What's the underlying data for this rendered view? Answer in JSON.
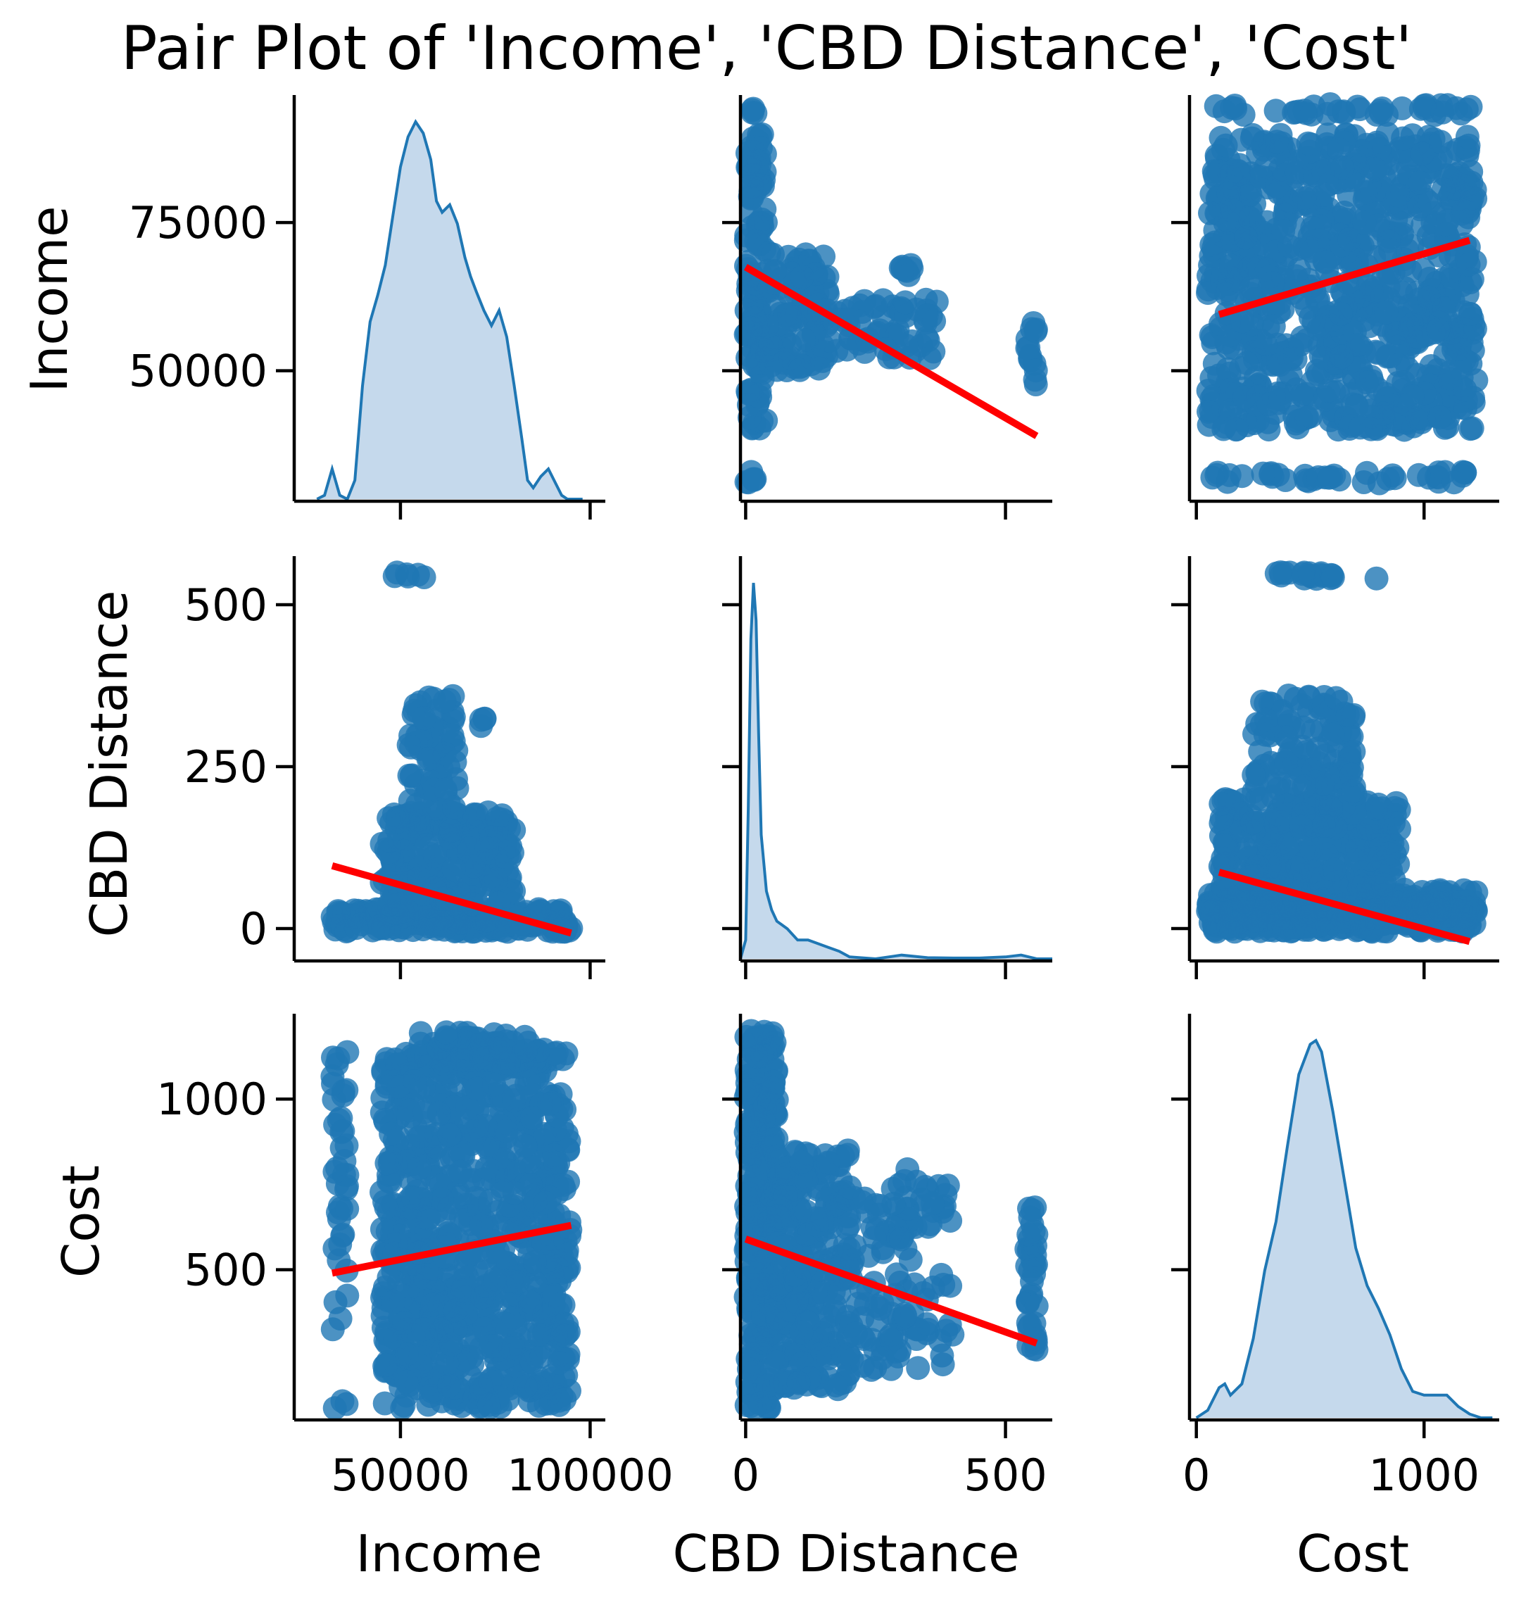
{
  "chart_data": {
    "type": "pairplot",
    "title": "Pair Plot of 'Income', 'CBD Distance', 'Cost'",
    "variables": [
      "Income",
      "CBD Distance",
      "Cost"
    ],
    "colors": {
      "points": "#1f77b4",
      "kde_line": "#1f77b4",
      "kde_fill": "#c5d9ec",
      "regression": "#ff0000",
      "axes": "#000000"
    },
    "axes": {
      "Income": {
        "range": [
          22000,
          104000
        ],
        "ticks": [
          50000,
          100000
        ],
        "tick_labels": [
          "50000",
          "100000"
        ],
        "row_ticks": [
          50000,
          75000
        ],
        "row_tick_labels": [
          "50000",
          "75000"
        ],
        "row_range": [
          28000,
          96500
        ]
      },
      "CBD Distance": {
        "range": [
          -10,
          590
        ],
        "ticks": [
          0,
          500
        ],
        "tick_labels": [
          "0",
          "500"
        ],
        "row_ticks": [
          0,
          250,
          500
        ],
        "row_tick_labels": [
          "0",
          "250",
          "500"
        ],
        "row_range": [
          -50,
          575
        ]
      },
      "Cost": {
        "range": [
          -30,
          1330
        ],
        "ticks": [
          0,
          1000
        ],
        "tick_labels": [
          "0",
          "1000"
        ],
        "row_ticks": [
          500,
          1000
        ],
        "row_tick_labels": [
          "500",
          "1000"
        ],
        "row_range": [
          60,
          1250
        ]
      }
    },
    "diagonal_kde": {
      "Income": {
        "x": [
          28000,
          30000,
          32000,
          34000,
          36000,
          38000,
          40000,
          42000,
          44000,
          46000,
          48000,
          50000,
          52000,
          54000,
          56000,
          58000,
          59500,
          61000,
          63000,
          65000,
          67000,
          68500,
          70000,
          72000,
          74000,
          76000,
          78000,
          80000,
          82000,
          83500,
          85000,
          87000,
          89000,
          91000,
          92500,
          94000,
          96000,
          98000
        ],
        "density": [
          0.0,
          0.01,
          0.08,
          0.01,
          0.0,
          0.05,
          0.3,
          0.47,
          0.54,
          0.62,
          0.75,
          0.88,
          0.96,
          1.0,
          0.97,
          0.9,
          0.79,
          0.76,
          0.78,
          0.73,
          0.64,
          0.59,
          0.55,
          0.5,
          0.46,
          0.5,
          0.43,
          0.3,
          0.16,
          0.05,
          0.03,
          0.06,
          0.08,
          0.04,
          0.01,
          0.0,
          0.0,
          0.0
        ]
      },
      "CBD Distance": {
        "x": [
          -10,
          0,
          5,
          10,
          15,
          20,
          25,
          30,
          40,
          50,
          60,
          70,
          80,
          100,
          120,
          140,
          160,
          180,
          200,
          250,
          300,
          350,
          400,
          450,
          500,
          530,
          545,
          560,
          590
        ],
        "density": [
          0.0,
          0.05,
          0.4,
          0.85,
          1.0,
          0.9,
          0.6,
          0.33,
          0.18,
          0.13,
          0.1,
          0.09,
          0.08,
          0.05,
          0.05,
          0.04,
          0.03,
          0.02,
          0.005,
          0.0,
          0.01,
          0.003,
          0.002,
          0.002,
          0.005,
          0.01,
          0.005,
          0.0,
          0.0
        ]
      },
      "Cost": {
        "x": [
          0,
          50,
          100,
          125,
          150,
          200,
          250,
          300,
          350,
          400,
          450,
          500,
          525,
          550,
          600,
          650,
          700,
          750,
          800,
          850,
          900,
          950,
          1000,
          1050,
          1100,
          1150,
          1200,
          1250,
          1300
        ],
        "density": [
          0.0,
          0.02,
          0.08,
          0.09,
          0.06,
          0.09,
          0.21,
          0.39,
          0.52,
          0.72,
          0.91,
          0.99,
          1.0,
          0.97,
          0.81,
          0.63,
          0.45,
          0.35,
          0.29,
          0.22,
          0.13,
          0.07,
          0.06,
          0.06,
          0.06,
          0.03,
          0.01,
          0.0,
          0.0
        ]
      }
    },
    "regression_lines": [
      {
        "x": "CBD Distance",
        "y": "Income",
        "x_range": [
          0,
          560
        ],
        "y_values": [
          67500,
          39000
        ]
      },
      {
        "x": "Cost",
        "y": "Income",
        "x_range": [
          100,
          1200
        ],
        "y_values": [
          59500,
          72000
        ]
      },
      {
        "x": "Income",
        "y": "CBD Distance",
        "x_range": [
          32000,
          95000
        ],
        "y_values": [
          97,
          -7
        ]
      },
      {
        "x": "Cost",
        "y": "CBD Distance",
        "x_range": [
          100,
          1200
        ],
        "y_values": [
          87,
          -20
        ]
      },
      {
        "x": "Income",
        "y": "Cost",
        "x_range": [
          32000,
          95000
        ],
        "y_values": [
          490,
          630
        ]
      },
      {
        "x": "CBD Distance",
        "y": "Cost",
        "x_range": [
          0,
          560
        ],
        "y_values": [
          590,
          285
        ]
      }
    ],
    "scatter_panels": [
      {
        "x": "CBD Distance",
        "y": "Income",
        "clusters": [
          {
            "cx": [
              0,
              40
            ],
            "cy": [
              40000,
              90000
            ],
            "n": 140
          },
          {
            "cx": [
              40,
              160
            ],
            "cy": [
              50000,
              70000
            ],
            "n": 110
          },
          {
            "cx": [
              160,
              370
            ],
            "cy": [
              52000,
              62000
            ],
            "n": 60
          },
          {
            "cx": [
              295,
              320
            ],
            "cy": [
              66000,
              68000
            ],
            "n": 8
          },
          {
            "cx": [
              540,
              560
            ],
            "cy": [
              47000,
              60000
            ],
            "n": 14
          },
          {
            "cx": [
              0,
              20
            ],
            "cy": [
              31000,
              33000
            ],
            "n": 6
          },
          {
            "cx": [
              0,
              20
            ],
            "cy": [
              93000,
              95000
            ],
            "n": 4
          }
        ]
      },
      {
        "x": "Cost",
        "y": "Income",
        "clusters": [
          {
            "cx": [
              50,
              1230
            ],
            "cy": [
              40000,
              90000
            ],
            "n": 900
          },
          {
            "cx": [
              50,
              1230
            ],
            "cy": [
              93000,
              95000
            ],
            "n": 40
          },
          {
            "cx": [
              50,
              1230
            ],
            "cy": [
              31000,
              33000
            ],
            "n": 40
          }
        ]
      },
      {
        "x": "Income",
        "y": "CBD Distance",
        "clusters": [
          {
            "cx": [
              32000,
              95000
            ],
            "cy": [
              -5,
              30
            ],
            "n": 220
          },
          {
            "cx": [
              45000,
              80000
            ],
            "cy": [
              30,
              180
            ],
            "n": 240
          },
          {
            "cx": [
              52000,
              65000
            ],
            "cy": [
              180,
              360
            ],
            "n": 70
          },
          {
            "cx": [
              70000,
              76000
            ],
            "cy": [
              310,
              325
            ],
            "n": 4
          },
          {
            "cx": [
              48000,
              60000
            ],
            "cy": [
              540,
              550
            ],
            "n": 6
          }
        ]
      },
      {
        "x": "Cost",
        "y": "CBD Distance",
        "clusters": [
          {
            "cx": [
              50,
              1230
            ],
            "cy": [
              -5,
              60
            ],
            "n": 450
          },
          {
            "cx": [
              100,
              900
            ],
            "cy": [
              60,
              200
            ],
            "n": 300
          },
          {
            "cx": [
              250,
              700
            ],
            "cy": [
              200,
              360
            ],
            "n": 120
          },
          {
            "cx": [
              350,
              800
            ],
            "cy": [
              540,
              550
            ],
            "n": 20
          }
        ]
      },
      {
        "x": "Income",
        "y": "Cost",
        "clusters": [
          {
            "cx": [
              45000,
              95000
            ],
            "cy": [
              90,
              1150
            ],
            "n": 900
          },
          {
            "cx": [
              55000,
              85000
            ],
            "cy": [
              1100,
              1200
            ],
            "n": 60
          },
          {
            "cx": [
              32000,
              36000
            ],
            "cy": [
              300,
              1150
            ],
            "n": 40
          },
          {
            "cx": [
              32000,
              36000
            ],
            "cy": [
              90,
              120
            ],
            "n": 3
          }
        ]
      },
      {
        "x": "CBD Distance",
        "y": "Cost",
        "clusters": [
          {
            "cx": [
              0,
              60
            ],
            "cy": [
              90,
              1200
            ],
            "n": 300
          },
          {
            "cx": [
              60,
              200
            ],
            "cy": [
              150,
              850
            ],
            "n": 250
          },
          {
            "cx": [
              200,
              400
            ],
            "cy": [
              200,
              750
            ],
            "n": 120
          },
          {
            "cx": [
              300,
              330
            ],
            "cy": [
              750,
              800
            ],
            "n": 3
          },
          {
            "cx": [
              540,
              560
            ],
            "cy": [
              260,
              700
            ],
            "n": 40
          }
        ]
      }
    ]
  }
}
